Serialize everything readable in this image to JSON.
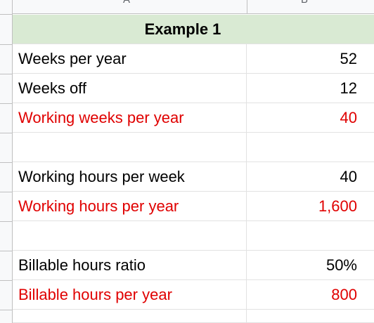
{
  "columns": {
    "a": "A",
    "b": "B"
  },
  "title": "Example 1",
  "rows": [
    {
      "label": "Weeks per year",
      "value": "52"
    },
    {
      "label": "Weeks off",
      "value": "12"
    },
    {
      "label": "Working weeks per year",
      "value": "40"
    },
    {
      "label": "",
      "value": ""
    },
    {
      "label": "Working hours per week",
      "value": "40"
    },
    {
      "label": "Working hours per year",
      "value": "1,600"
    },
    {
      "label": "",
      "value": ""
    },
    {
      "label": "Billable hours ratio",
      "value": "50%"
    },
    {
      "label": "Billable hours per year",
      "value": "800"
    },
    {
      "label": "",
      "value": ""
    }
  ],
  "colors": {
    "computed_text": "#e00000",
    "header_fill": "#d9ead3",
    "normal_text": "#000000"
  }
}
